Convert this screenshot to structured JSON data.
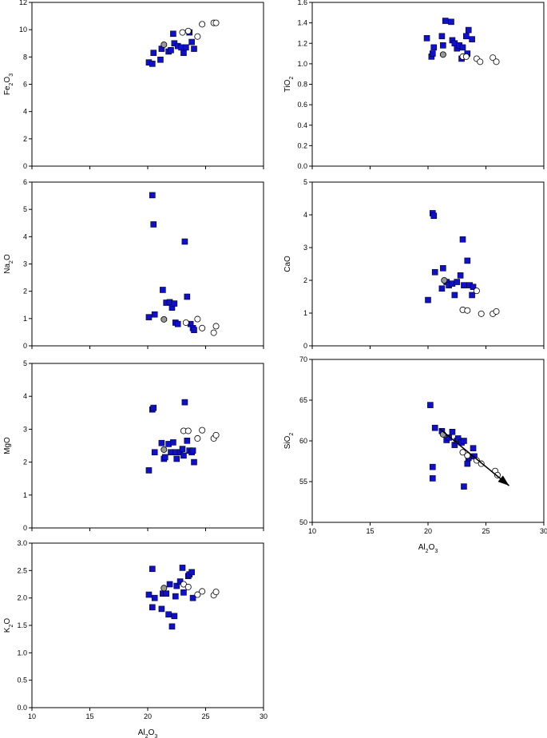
{
  "chart_data": [
    {
      "type": "scatter",
      "ylabel": "Fe2O3",
      "ylabel_main": "Fe",
      "ylabel_sub1": "2",
      "ylabel_mid": "O",
      "ylabel_sub2": "3",
      "xlabel": "",
      "xlim": [
        10,
        30
      ],
      "ylim": [
        0,
        12
      ],
      "yticks": [
        "0",
        "2",
        "4",
        "6",
        "8",
        "10",
        "12"
      ],
      "xticks": [],
      "series": [
        {
          "marker": "square",
          "color": "#1010c8",
          "points": [
            [
              20.1,
              7.6
            ],
            [
              20.4,
              7.5
            ],
            [
              20.5,
              8.3
            ],
            [
              21.1,
              7.8
            ],
            [
              21.2,
              8.6
            ],
            [
              21.8,
              8.4
            ],
            [
              22.0,
              8.5
            ],
            [
              22.2,
              9.7
            ],
            [
              22.3,
              9.0
            ],
            [
              22.6,
              8.8
            ],
            [
              22.9,
              8.7
            ],
            [
              23.1,
              8.3
            ],
            [
              23.3,
              8.7
            ],
            [
              23.6,
              9.8
            ],
            [
              23.8,
              9.1
            ],
            [
              24.0,
              8.6
            ]
          ]
        },
        {
          "marker": "circle",
          "color": "#ffffff",
          "points": [
            [
              23.0,
              9.8
            ],
            [
              23.5,
              9.9
            ],
            [
              24.3,
              9.5
            ],
            [
              24.7,
              10.4
            ],
            [
              25.7,
              10.5
            ],
            [
              25.9,
              10.5
            ]
          ]
        },
        {
          "marker": "circle",
          "color": "#999999",
          "points": [
            [
              21.4,
              8.9
            ]
          ]
        }
      ]
    },
    {
      "type": "scatter",
      "ylabel": "TiO2",
      "ylabel_main": "TiO",
      "ylabel_sub1": "2",
      "xlabel": "",
      "xlim": [
        10,
        30
      ],
      "ylim": [
        0.0,
        1.6
      ],
      "yticks": [
        "0.0",
        "0.2",
        "0.4",
        "0.6",
        "0.8",
        "1.0",
        "1.2",
        "1.4",
        "1.6"
      ],
      "xticks": [],
      "series": [
        {
          "marker": "square",
          "color": "#1010c8",
          "points": [
            [
              19.9,
              1.25
            ],
            [
              20.3,
              1.07
            ],
            [
              20.4,
              1.1
            ],
            [
              20.5,
              1.16
            ],
            [
              21.2,
              1.27
            ],
            [
              21.3,
              1.18
            ],
            [
              21.5,
              1.42
            ],
            [
              22.0,
              1.41
            ],
            [
              22.1,
              1.23
            ],
            [
              22.3,
              1.2
            ],
            [
              22.5,
              1.15
            ],
            [
              22.7,
              1.18
            ],
            [
              23.0,
              1.16
            ],
            [
              23.3,
              1.27
            ],
            [
              23.5,
              1.33
            ],
            [
              23.8,
              1.24
            ],
            [
              23.4,
              1.1
            ],
            [
              22.9,
              1.05
            ]
          ]
        },
        {
          "marker": "circle",
          "color": "#ffffff",
          "points": [
            [
              23.0,
              1.07
            ],
            [
              23.3,
              1.07
            ],
            [
              24.2,
              1.05
            ],
            [
              24.5,
              1.02
            ],
            [
              25.6,
              1.06
            ],
            [
              25.9,
              1.02
            ]
          ]
        },
        {
          "marker": "circle",
          "color": "#999999",
          "points": [
            [
              21.3,
              1.09
            ]
          ]
        }
      ]
    },
    {
      "type": "scatter",
      "ylabel": "Na2O",
      "ylabel_main": "Na",
      "ylabel_sub1": "2",
      "ylabel_mid": "O",
      "xlabel": "",
      "xlim": [
        10,
        30
      ],
      "ylim": [
        0,
        6
      ],
      "yticks": [
        "0",
        "1",
        "2",
        "3",
        "4",
        "5",
        "6"
      ],
      "xticks": [],
      "series": [
        {
          "marker": "square",
          "color": "#1010c8",
          "points": [
            [
              20.4,
              5.52
            ],
            [
              20.5,
              4.45
            ],
            [
              20.1,
              1.05
            ],
            [
              20.6,
              1.15
            ],
            [
              21.3,
              2.05
            ],
            [
              21.6,
              1.58
            ],
            [
              21.9,
              1.6
            ],
            [
              22.1,
              1.4
            ],
            [
              22.3,
              1.55
            ],
            [
              22.4,
              0.85
            ],
            [
              22.6,
              0.8
            ],
            [
              23.2,
              3.82
            ],
            [
              23.4,
              1.8
            ],
            [
              23.7,
              0.8
            ],
            [
              23.9,
              0.65
            ],
            [
              24.0,
              0.58
            ]
          ]
        },
        {
          "marker": "circle",
          "color": "#ffffff",
          "points": [
            [
              23.3,
              0.85
            ],
            [
              24.3,
              0.98
            ],
            [
              24.7,
              0.65
            ],
            [
              25.7,
              0.48
            ],
            [
              25.9,
              0.72
            ]
          ]
        },
        {
          "marker": "circle",
          "color": "#999999",
          "points": [
            [
              21.4,
              0.97
            ]
          ]
        }
      ]
    },
    {
      "type": "scatter",
      "ylabel": "CaO",
      "ylabel_main": "CaO",
      "xlabel": "",
      "xlim": [
        10,
        30
      ],
      "ylim": [
        0,
        5
      ],
      "yticks": [
        "0",
        "1",
        "2",
        "3",
        "4",
        "5"
      ],
      "xticks": [],
      "series": [
        {
          "marker": "square",
          "color": "#1010c8",
          "points": [
            [
              20.0,
              1.4
            ],
            [
              20.4,
              4.05
            ],
            [
              20.5,
              3.97
            ],
            [
              20.6,
              2.25
            ],
            [
              21.2,
              1.75
            ],
            [
              21.3,
              2.37
            ],
            [
              21.6,
              1.95
            ],
            [
              21.8,
              1.85
            ],
            [
              22.1,
              1.9
            ],
            [
              22.3,
              1.55
            ],
            [
              22.5,
              1.95
            ],
            [
              22.8,
              2.15
            ],
            [
              23.0,
              3.25
            ],
            [
              23.1,
              1.85
            ],
            [
              23.4,
              2.6
            ],
            [
              23.6,
              1.85
            ],
            [
              23.9,
              1.8
            ],
            [
              23.8,
              1.55
            ]
          ]
        },
        {
          "marker": "circle",
          "color": "#ffffff",
          "points": [
            [
              23.0,
              1.1
            ],
            [
              23.4,
              1.08
            ],
            [
              24.2,
              1.68
            ],
            [
              24.6,
              0.98
            ],
            [
              25.6,
              0.98
            ],
            [
              25.9,
              1.05
            ]
          ]
        },
        {
          "marker": "circle",
          "color": "#999999",
          "points": [
            [
              21.4,
              2.0
            ]
          ]
        }
      ]
    },
    {
      "type": "scatter",
      "ylabel": "MgO",
      "ylabel_main": "MgO",
      "xlabel": "",
      "xlim": [
        10,
        30
      ],
      "ylim": [
        0,
        5
      ],
      "yticks": [
        "0",
        "1",
        "2",
        "3",
        "4",
        "5"
      ],
      "xticks": [],
      "series": [
        {
          "marker": "square",
          "color": "#1010c8",
          "points": [
            [
              20.1,
              1.75
            ],
            [
              20.4,
              3.6
            ],
            [
              20.5,
              3.65
            ],
            [
              20.6,
              2.3
            ],
            [
              21.2,
              2.58
            ],
            [
              21.4,
              2.1
            ],
            [
              21.5,
              2.15
            ],
            [
              21.8,
              2.55
            ],
            [
              22.0,
              2.3
            ],
            [
              22.2,
              2.6
            ],
            [
              22.4,
              2.3
            ],
            [
              22.5,
              2.1
            ],
            [
              22.8,
              2.3
            ],
            [
              23.0,
              2.4
            ],
            [
              23.1,
              2.2
            ],
            [
              23.2,
              3.82
            ],
            [
              23.4,
              2.65
            ],
            [
              23.6,
              2.35
            ],
            [
              23.8,
              2.3
            ],
            [
              23.9,
              2.35
            ],
            [
              24.0,
              2.0
            ]
          ]
        },
        {
          "marker": "circle",
          "color": "#ffffff",
          "points": [
            [
              23.1,
              2.95
            ],
            [
              23.5,
              2.95
            ],
            [
              24.3,
              2.72
            ],
            [
              24.7,
              2.97
            ],
            [
              25.7,
              2.72
            ],
            [
              25.9,
              2.82
            ]
          ]
        },
        {
          "marker": "circle",
          "color": "#999999",
          "points": [
            [
              21.4,
              2.38
            ]
          ]
        }
      ]
    },
    {
      "type": "scatter",
      "ylabel": "SiO2",
      "ylabel_main": "SiO",
      "ylabel_sub1": "2",
      "xlabel": "Al2O3",
      "xlabel_main": "Al",
      "xlabel_sub1": "2",
      "xlabel_mid": "O",
      "xlabel_sub2": "3",
      "xlim": [
        10,
        30
      ],
      "ylim": [
        50,
        70
      ],
      "yticks": [
        "50",
        "55",
        "60",
        "65",
        "70"
      ],
      "xticks": [
        "10",
        "15",
        "20",
        "25",
        "30"
      ],
      "arrow": {
        "from": [
          21.0,
          61.5
        ],
        "to": [
          27.0,
          54.5
        ]
      },
      "series": [
        {
          "marker": "square",
          "color": "#1010c8",
          "points": [
            [
              20.2,
              64.4
            ],
            [
              20.4,
              56.8
            ],
            [
              20.4,
              55.4
            ],
            [
              20.6,
              61.6
            ],
            [
              21.2,
              61.2
            ],
            [
              21.6,
              60.1
            ],
            [
              21.8,
              60.4
            ],
            [
              22.1,
              61.1
            ],
            [
              22.3,
              59.5
            ],
            [
              22.5,
              60.0
            ],
            [
              22.6,
              60.3
            ],
            [
              22.9,
              59.8
            ],
            [
              23.1,
              60.0
            ],
            [
              23.1,
              54.4
            ],
            [
              23.4,
              57.2
            ],
            [
              23.5,
              57.9
            ],
            [
              23.9,
              59.1
            ],
            [
              24.0,
              58.1
            ]
          ]
        },
        {
          "marker": "circle",
          "color": "#ffffff",
          "points": [
            [
              23.0,
              58.6
            ],
            [
              23.4,
              58.2
            ],
            [
              24.2,
              57.6
            ],
            [
              24.6,
              57.2
            ],
            [
              25.8,
              56.3
            ],
            [
              26.0,
              55.8
            ]
          ]
        },
        {
          "marker": "circle",
          "color": "#999999",
          "points": [
            [
              21.3,
              60.8
            ]
          ]
        }
      ]
    },
    {
      "type": "scatter",
      "ylabel": "K2O",
      "ylabel_main": "K",
      "ylabel_sub1": "2",
      "ylabel_mid": "O",
      "xlabel": "Al2O3",
      "xlabel_main": "Al",
      "xlabel_sub1": "2",
      "xlabel_mid": "O",
      "xlabel_sub2": "3",
      "xlim": [
        10,
        30
      ],
      "ylim": [
        0.0,
        3.0
      ],
      "yticks": [
        "0.0",
        "0.5",
        "1.0",
        "1.5",
        "2.0",
        "2.5",
        "3.0"
      ],
      "xticks": [
        "10",
        "15",
        "20",
        "25",
        "30"
      ],
      "series": [
        {
          "marker": "square",
          "color": "#1010c8",
          "points": [
            [
              20.1,
              2.06
            ],
            [
              20.4,
              2.53
            ],
            [
              20.4,
              1.83
            ],
            [
              20.6,
              2.0
            ],
            [
              21.2,
              1.8
            ],
            [
              21.3,
              2.08
            ],
            [
              21.6,
              2.08
            ],
            [
              21.8,
              1.7
            ],
            [
              21.9,
              2.25
            ],
            [
              22.1,
              1.48
            ],
            [
              22.3,
              1.67
            ],
            [
              22.4,
              2.03
            ],
            [
              22.5,
              2.22
            ],
            [
              22.8,
              2.3
            ],
            [
              23.0,
              2.55
            ],
            [
              23.1,
              2.1
            ],
            [
              23.5,
              2.4
            ],
            [
              23.6,
              2.43
            ],
            [
              23.8,
              2.47
            ],
            [
              23.9,
              2.0
            ]
          ]
        },
        {
          "marker": "circle",
          "color": "#ffffff",
          "points": [
            [
              23.1,
              2.25
            ],
            [
              23.5,
              2.2
            ],
            [
              24.3,
              2.06
            ],
            [
              24.7,
              2.12
            ],
            [
              25.7,
              2.05
            ],
            [
              25.9,
              2.11
            ]
          ]
        },
        {
          "marker": "circle",
          "color": "#999999",
          "points": [
            [
              21.4,
              2.18
            ]
          ]
        }
      ]
    }
  ]
}
